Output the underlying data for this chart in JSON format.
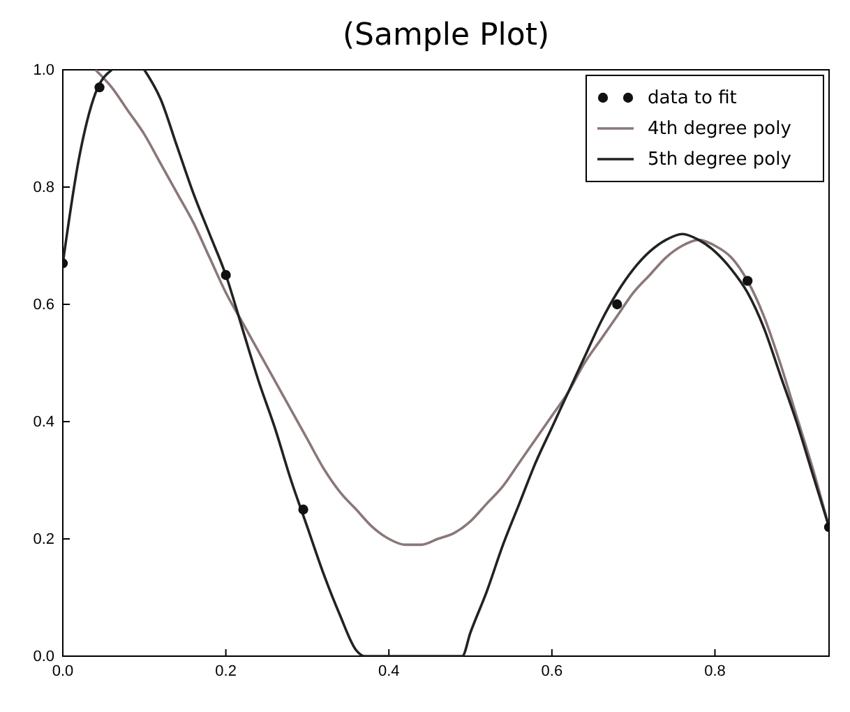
{
  "chart_data": {
    "type": "line",
    "title": "(Sample Plot)",
    "xlim": [
      0,
      0.94
    ],
    "ylim": [
      0,
      1
    ],
    "xticks": [
      {
        "value": 0,
        "label": "0.0"
      },
      0.2,
      0.4,
      0.6,
      0.8
    ],
    "yticks": [
      {
        "value": 0,
        "label": "0.0"
      },
      0.2,
      0.4,
      0.6,
      0.8,
      {
        "value": 1,
        "label": "1.0"
      }
    ],
    "legend": "top right",
    "grid": false,
    "series": [
      {
        "name": "data to fit",
        "type": "scatter",
        "marker": "circle",
        "color": "#111111",
        "x": [
          0,
          0.045,
          0.2,
          0.295,
          0.68,
          0.84,
          0.94
        ],
        "values": [
          0.67,
          0.97,
          0.65,
          0.25,
          0.6,
          0.64,
          0.22
        ]
      },
      {
        "name": "4th degree poly",
        "color": "#8a7878",
        "x": [
          0.04,
          0.06,
          0.08,
          0.1,
          0.12,
          0.14,
          0.16,
          0.18,
          0.2,
          0.22,
          0.24,
          0.26,
          0.28,
          0.3,
          0.32,
          0.34,
          0.36,
          0.38,
          0.4,
          0.42,
          0.44,
          0.46,
          0.48,
          0.5,
          0.52,
          0.54,
          0.56,
          0.58,
          0.6,
          0.62,
          0.64,
          0.66,
          0.68,
          0.7,
          0.72,
          0.74,
          0.76,
          0.78,
          0.8,
          0.82,
          0.84,
          0.86,
          0.88,
          0.9,
          0.92,
          0.94
        ],
        "values": [
          1.0,
          0.97,
          0.93,
          0.89,
          0.84,
          0.79,
          0.74,
          0.68,
          0.62,
          0.57,
          0.52,
          0.47,
          0.42,
          0.37,
          0.32,
          0.28,
          0.25,
          0.22,
          0.2,
          0.19,
          0.19,
          0.2,
          0.21,
          0.23,
          0.26,
          0.29,
          0.33,
          0.37,
          0.41,
          0.45,
          0.5,
          0.54,
          0.58,
          0.62,
          0.65,
          0.68,
          0.7,
          0.71,
          0.7,
          0.68,
          0.64,
          0.58,
          0.5,
          0.41,
          0.32,
          0.22
        ]
      },
      {
        "name": "5th degree poly",
        "color": "#222222",
        "x": [
          0,
          0.02,
          0.04,
          0.06,
          0.08,
          0.1,
          0.12,
          0.14,
          0.16,
          0.18,
          0.2,
          0.22,
          0.24,
          0.26,
          0.28,
          0.3,
          0.32,
          0.34,
          0.36,
          0.37,
          0.49,
          0.5,
          0.52,
          0.54,
          0.56,
          0.58,
          0.6,
          0.62,
          0.64,
          0.66,
          0.68,
          0.7,
          0.72,
          0.74,
          0.76,
          0.78,
          0.8,
          0.82,
          0.84,
          0.86,
          0.88,
          0.9,
          0.92,
          0.94
        ],
        "values": [
          0.67,
          0.85,
          0.96,
          1.0,
          null,
          1.0,
          0.95,
          0.87,
          0.79,
          0.72,
          0.65,
          0.56,
          0.47,
          0.39,
          0.3,
          0.22,
          0.14,
          0.07,
          0.01,
          0.0,
          0.0,
          0.04,
          0.11,
          0.19,
          0.26,
          0.33,
          0.39,
          0.45,
          0.51,
          0.57,
          0.62,
          0.66,
          0.69,
          0.71,
          0.72,
          0.71,
          0.69,
          0.66,
          0.62,
          0.56,
          0.48,
          0.4,
          0.31,
          0.22
        ]
      }
    ]
  }
}
